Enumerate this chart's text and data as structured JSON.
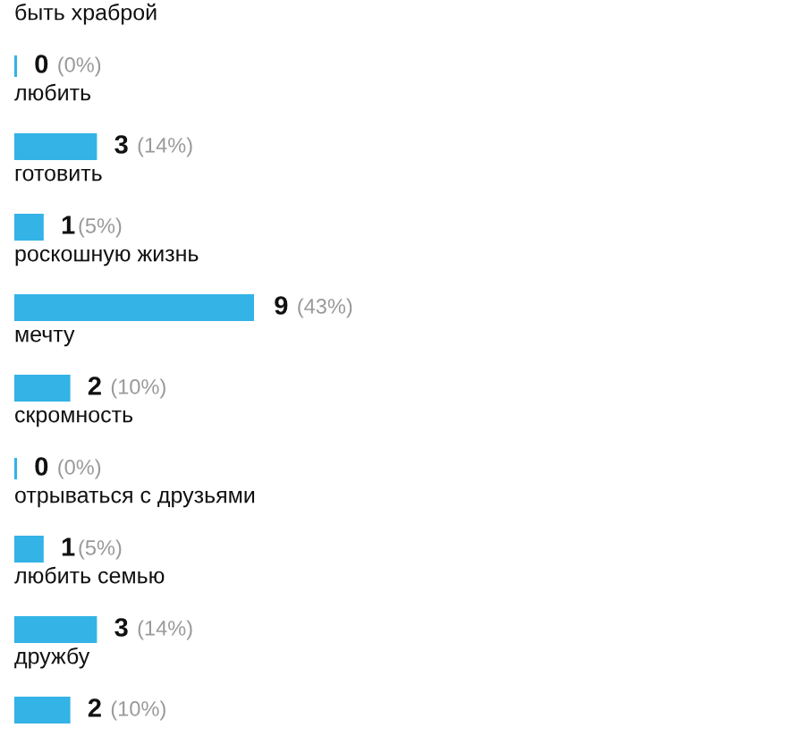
{
  "chart_data": {
    "type": "bar",
    "orientation": "horizontal",
    "color": "#33b3e6",
    "categories": [
      "быть храброй",
      "любить",
      "готовить",
      "роскошную жизнь",
      "мечту",
      "скромность",
      "отрываться с друзьями",
      "любить семью",
      "дружбу"
    ],
    "values": [
      0,
      3,
      1,
      9,
      2,
      0,
      1,
      3,
      2
    ],
    "value_labels": [
      "0 (0%)",
      "3 (14%)",
      "1(5%)",
      "9 (43%)",
      "2 (10%)",
      "0 (0%)",
      "1(5%)",
      "3 (14%)",
      "2 (10%)"
    ]
  }
}
